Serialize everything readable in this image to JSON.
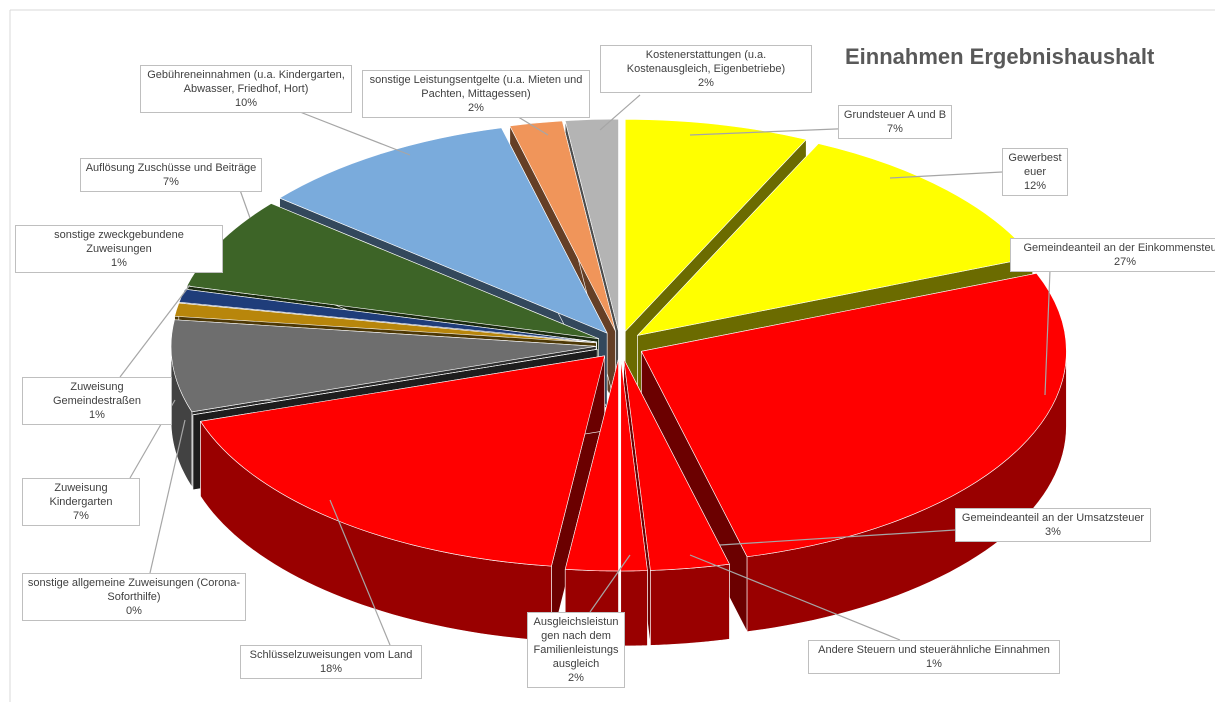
{
  "chart_data": {
    "type": "pie",
    "title": "Einnahmen Ergebnishaushalt",
    "categories": [
      "Grundsteuer A und B",
      "Gewerbesteuer",
      "Gemeindeanteil an der Einkommensteuer",
      "Gemeindeanteil an der Umsatzsteuer",
      "Andere Steuern und steuerähnliche Einnahmen",
      "Ausgleichsleistungen nach dem Familienleistungsausgleich",
      "Schlüsselzuweisungen vom Land",
      "sonstige allgemeine Zuweisungen (Corona-Soforthilfe)",
      "Zuweisung Kindergarten",
      "Zuweisung Gemeindestraßen",
      "sonstige zweckgebundene Zuweisungen",
      "Auflösung Zuschüsse und Beiträge",
      "Gebühreneinnahmen (u.a. Kindergarten, Abwasser, Friedhof, Hort)",
      "sonstige Leistungsentgelte (u.a. Mieten und Pachten, Mittagessen)",
      "Kostenerstattungen (u.a. Kostenausgleich, Eigenbetriebe)"
    ],
    "values": [
      7,
      12,
      27,
      3,
      1,
      2,
      18,
      0,
      7,
      1,
      1,
      7,
      10,
      2,
      2
    ],
    "value_labels": [
      "7%",
      "12%",
      "27%",
      "3%",
      "1%",
      "2%",
      "18%",
      "0%",
      "7%",
      "1%",
      "1%",
      "7%",
      "10%",
      "2%",
      "2%"
    ],
    "colors": [
      "#ffff00",
      "#ffff00",
      "#ff0000",
      "#ff0000",
      "#ff0000",
      "#ff0000",
      "#ff0000",
      "#444444",
      "#6e6e6e",
      "#b8860b",
      "#1f3d7a",
      "#3d6427",
      "#7aabdc",
      "#f0955a",
      "#b4b4b4"
    ]
  }
}
